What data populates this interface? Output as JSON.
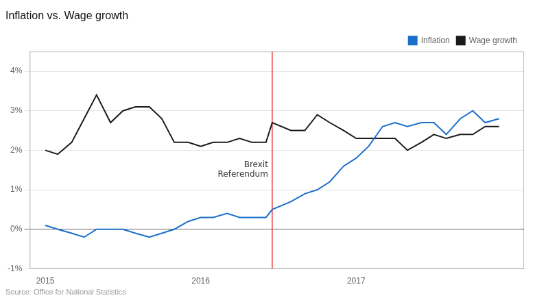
{
  "chart_data": {
    "type": "line",
    "title": "Inflation vs. Wage growth",
    "source": "Source: Office for National Statistics",
    "x": [
      2015,
      2015.08,
      2015.17,
      2015.25,
      2015.33,
      2015.42,
      2015.5,
      2015.58,
      2015.67,
      2015.75,
      2015.83,
      2015.92,
      2016,
      2016.08,
      2016.17,
      2016.25,
      2016.33,
      2016.42,
      2016.46,
      2016.58,
      2016.67,
      2016.75,
      2016.83,
      2016.92,
      2017,
      2017.08,
      2017.17,
      2017.25,
      2017.33,
      2017.42,
      2017.5,
      2017.58,
      2017.67,
      2017.75,
      2017.83,
      2017.92
    ],
    "series": [
      {
        "name": "Inflation",
        "color": "#1a6fca",
        "values": [
          0.001,
          0.0,
          -0.001,
          -0.002,
          0.0,
          0.0,
          0.0,
          -0.001,
          -0.002,
          -0.001,
          0.0,
          0.002,
          0.003,
          0.003,
          0.004,
          0.003,
          0.003,
          0.003,
          0.005,
          0.007,
          0.009,
          0.01,
          0.012,
          0.016,
          0.018,
          0.021,
          0.026,
          0.027,
          0.026,
          0.027,
          0.027,
          0.024,
          0.028,
          0.03,
          0.027,
          0.028
        ]
      },
      {
        "name": "Wage growth",
        "color": "#1a1a1a",
        "values": [
          0.02,
          0.019,
          0.022,
          0.028,
          0.034,
          0.027,
          0.03,
          0.031,
          0.031,
          0.028,
          0.022,
          0.022,
          0.021,
          0.022,
          0.022,
          0.023,
          0.022,
          0.022,
          0.027,
          0.025,
          0.025,
          0.029,
          0.027,
          0.025,
          0.023,
          0.023,
          0.023,
          0.023,
          0.02,
          0.022,
          0.024,
          0.023,
          0.024,
          0.024,
          0.026,
          0.026
        ]
      }
    ],
    "annotations": [
      {
        "text": "Brexit\nReferendum",
        "x": 2016.46,
        "y": 0.015,
        "color": "#e84040"
      }
    ],
    "xlim": [
      2014.9,
      2018.08
    ],
    "xticks": [
      2015,
      2016,
      2017
    ],
    "ylim": [
      -0.01,
      0.045
    ],
    "yticks": [
      {
        "value": -0.01,
        "label": "-1%"
      },
      {
        "value": 0.0,
        "label": "0%"
      },
      {
        "value": 0.01,
        "label": "1%"
      },
      {
        "value": 0.02,
        "label": "2%"
      },
      {
        "value": 0.03,
        "label": "3%"
      },
      {
        "value": 0.04,
        "label": "4%"
      }
    ],
    "grid": true,
    "legend": "upper right"
  }
}
